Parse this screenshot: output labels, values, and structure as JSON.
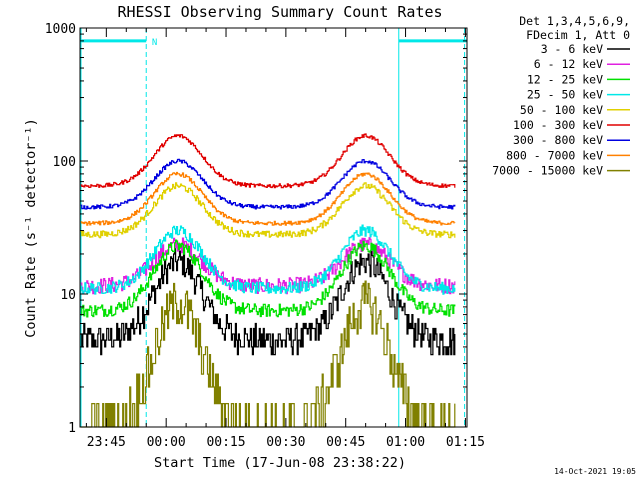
{
  "chart_data": {
    "type": "line",
    "title": "RHESSI Observing Summary Count Rates",
    "xlabel": "Start Time (17-Jun-08 23:38:22)",
    "ylabel": "Count Rate (s⁻¹ detector⁻¹)",
    "yscale": "log",
    "ylim": [
      1,
      1000
    ],
    "xlim_minutes": [
      0,
      97
    ],
    "x_tick_labels": [
      {
        "minute": 6.6,
        "label": "23:45"
      },
      {
        "minute": 21.6,
        "label": "00:00"
      },
      {
        "minute": 36.6,
        "label": "00:15"
      },
      {
        "minute": 51.6,
        "label": "00:30"
      },
      {
        "minute": 66.6,
        "label": "00:45"
      },
      {
        "minute": 81.6,
        "label": "01:00"
      },
      {
        "minute": 96.6,
        "label": "01:15"
      }
    ],
    "y_tick_labels": [
      {
        "value": 1,
        "label": "1"
      },
      {
        "value": 10,
        "label": "10"
      },
      {
        "value": 100,
        "label": "100"
      },
      {
        "value": 1000,
        "label": "1000"
      }
    ],
    "legend": {
      "placement": "top-right",
      "header": [
        "Det 1,3,4,5,6,9,",
        "FDecim 1, Att 0"
      ]
    },
    "peaks_minute": [
      24.5,
      71.5
    ],
    "series": [
      {
        "name": "3 - 6 keV",
        "color": "#000000",
        "base": 4.5,
        "peak": 17.5,
        "noise": 0.22
      },
      {
        "name": "6 - 12 keV",
        "color": "#e020e0",
        "base": 11.5,
        "peak": 23.5,
        "noise": 0.12
      },
      {
        "name": "12 - 25 keV",
        "color": "#00e000",
        "base": 7.5,
        "peak": 23,
        "noise": 0.1
      },
      {
        "name": "25 - 50 keV",
        "color": "#00e8e8",
        "base": 11,
        "peak": 30,
        "noise": 0.09
      },
      {
        "name": "50 - 100 keV",
        "color": "#e0d000",
        "base": 28,
        "peak": 65,
        "noise": 0.05
      },
      {
        "name": "100 - 300 keV",
        "color": "#e00000",
        "base": 65,
        "peak": 155,
        "noise": 0.03
      },
      {
        "name": "300 - 800 keV",
        "color": "#0000e0",
        "base": 45,
        "peak": 100,
        "noise": 0.03
      },
      {
        "name": "800 - 7000 keV",
        "color": "#ff8000",
        "base": 34,
        "peak": 80,
        "noise": 0.03
      },
      {
        "name": "7000 - 15000 keV",
        "color": "#808000",
        "base": 1.0,
        "peak": 8.5,
        "noise": 0.35
      }
    ],
    "annotations": {
      "night_segments_minutes": [
        [
          0,
          16.6
        ],
        [
          79.9,
          97
        ]
      ],
      "night_level": 800,
      "saa_line_minutes": [
        16.6,
        79.9,
        96.4
      ],
      "marker_label": {
        "minute": 18.0,
        "text": "N"
      }
    },
    "footer_date": "14-Oct-2021 19:05"
  }
}
